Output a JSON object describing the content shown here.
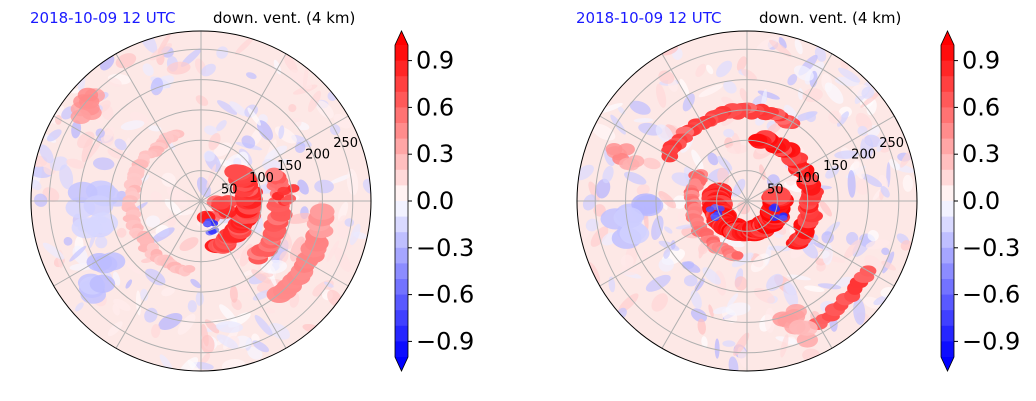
{
  "chart_data": [
    {
      "type": "heatmap",
      "projection": "polar",
      "title_left": "2018-10-09 12 UTC",
      "title_right": "down. vent. (4 km)",
      "radial_tick_labels": [
        "50",
        "100",
        "150",
        "200",
        "250"
      ],
      "radial_ticks": [
        50,
        100,
        150,
        200,
        250
      ],
      "colorbar": {
        "min": -1.0,
        "max": 1.0,
        "levels": 20,
        "extend": "both",
        "colormap": "bwr",
        "tick_labels": [
          "0.9",
          "0.6",
          "0.3",
          "0.0",
          "−0.3",
          "−0.6",
          "−0.9"
        ],
        "ticks": [
          0.9,
          0.6,
          0.3,
          0.0,
          -0.3,
          -0.6,
          -0.9
        ]
      },
      "grid": true,
      "features": [
        {
          "kind": "arc",
          "r": 78,
          "a1": -70,
          "a2": 40,
          "w": 14,
          "v": 0.9
        },
        {
          "kind": "arc",
          "r": 130,
          "a1": -45,
          "a2": 20,
          "w": 12,
          "v": 0.7
        },
        {
          "kind": "arc",
          "r": 115,
          "a1": 110,
          "a2": 260,
          "w": 8,
          "v": 0.3
        },
        {
          "kind": "arc",
          "r": 200,
          "a1": -50,
          "a2": -5,
          "w": 14,
          "v": 0.5
        },
        {
          "kind": "blob",
          "r": 30,
          "a": -40,
          "size": 22,
          "v": 1.0
        },
        {
          "kind": "blob",
          "r": 140,
          "a": 5,
          "size": 14,
          "v": 0.9
        },
        {
          "kind": "blob",
          "r": 240,
          "a": 140,
          "size": 24,
          "v": 0.5
        },
        {
          "kind": "blob",
          "r": 200,
          "a": 220,
          "size": 30,
          "v": -0.3
        },
        {
          "kind": "blob",
          "r": 180,
          "a": 185,
          "size": 35,
          "v": -0.25
        },
        {
          "kind": "blob",
          "r": 45,
          "a": -70,
          "size": 10,
          "v": -0.9
        }
      ]
    },
    {
      "type": "heatmap",
      "projection": "polar",
      "title_left": "2018-10-09 12 UTC",
      "title_right": "down. vent. (4 km)",
      "radial_tick_labels": [
        "50",
        "100",
        "150",
        "200",
        "250"
      ],
      "radial_ticks": [
        50,
        100,
        150,
        200,
        250
      ],
      "colorbar": {
        "min": -1.0,
        "max": 1.0,
        "levels": 20,
        "extend": "both",
        "colormap": "bwr",
        "tick_labels": [
          "0.9",
          "0.6",
          "0.3",
          "0.0",
          "−0.3",
          "−0.6",
          "−0.9"
        ],
        "ticks": [
          0.9,
          0.6,
          0.3,
          0.0,
          -0.3,
          -0.6,
          -0.9
        ]
      },
      "grid": true,
      "features": [
        {
          "kind": "arc",
          "r": 50,
          "a1": -200,
          "a2": 10,
          "w": 16,
          "v": 1.0
        },
        {
          "kind": "arc",
          "r": 105,
          "a1": -40,
          "a2": 80,
          "w": 12,
          "v": 0.95
        },
        {
          "kind": "arc",
          "r": 150,
          "a1": 60,
          "a2": 150,
          "w": 10,
          "v": 0.8
        },
        {
          "kind": "arc",
          "r": 90,
          "a1": 150,
          "a2": 260,
          "w": 8,
          "v": 0.6
        },
        {
          "kind": "arc",
          "r": 230,
          "a1": -60,
          "a2": -30,
          "w": 10,
          "v": 0.8
        },
        {
          "kind": "blob",
          "r": 55,
          "a": -20,
          "size": 10,
          "v": -0.9
        },
        {
          "kind": "blob",
          "r": 55,
          "a": 200,
          "size": 10,
          "v": -0.9
        },
        {
          "kind": "blob",
          "r": 190,
          "a": 190,
          "size": 35,
          "v": -0.3
        },
        {
          "kind": "blob",
          "r": 215,
          "a": 160,
          "size": 20,
          "v": 0.5
        },
        {
          "kind": "blob",
          "r": 220,
          "a": 290,
          "size": 25,
          "v": 0.4
        }
      ]
    }
  ]
}
